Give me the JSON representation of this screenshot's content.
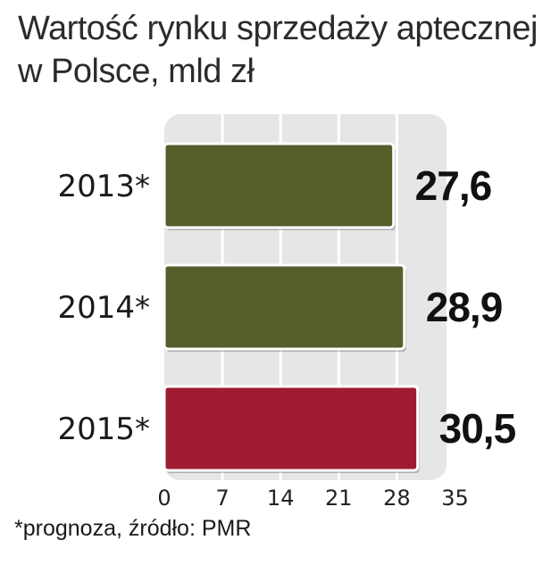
{
  "title": {
    "line1": "Wartość rynku sprzedaży aptecznej",
    "line2": "w Polsce, mld zł"
  },
  "footnote": "*prognoza, źródło: PMR",
  "colors": {
    "forecast_bar": "#565e2c",
    "highlight_bar": "#9f1c30",
    "plot_background": "#e6e6e6",
    "gridline": "#ffffff"
  },
  "chart_data": {
    "type": "bar",
    "orientation": "horizontal",
    "categories": [
      "2013*",
      "2014*",
      "2015*"
    ],
    "values": [
      27.6,
      28.9,
      30.5
    ],
    "value_labels": [
      "27,6",
      "28,9",
      "30,5"
    ],
    "bar_colors": [
      "#565e2c",
      "#565e2c",
      "#9f1c30"
    ],
    "xlim": [
      0,
      35
    ],
    "x_ticks": [
      "0",
      "7",
      "14",
      "21",
      "28",
      "35"
    ],
    "x_tick_values": [
      0,
      7,
      14,
      21,
      28,
      35
    ],
    "grid": true
  }
}
